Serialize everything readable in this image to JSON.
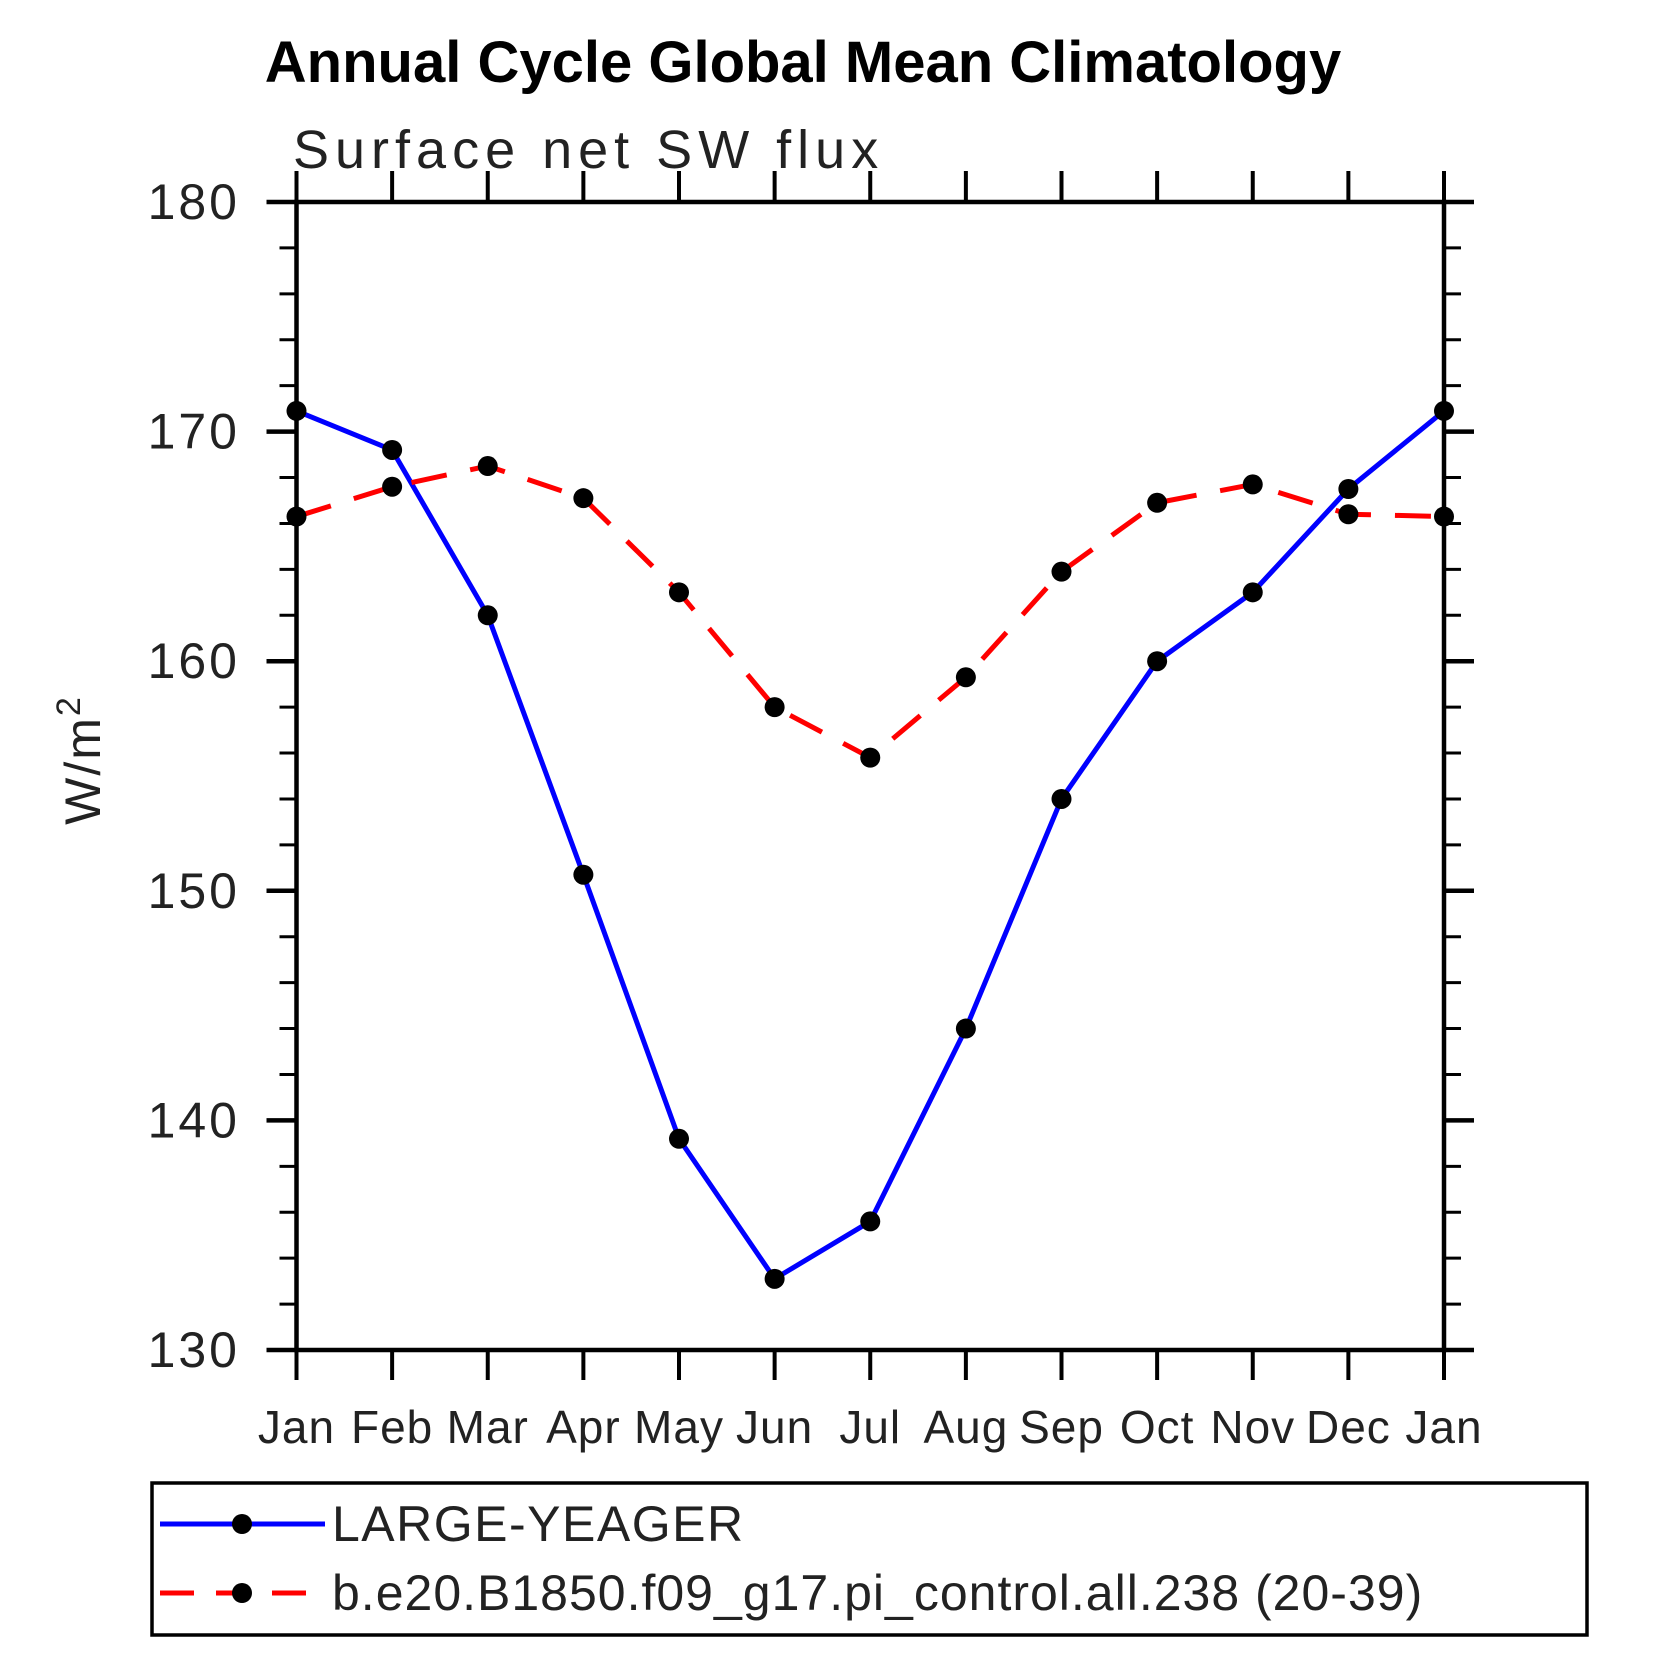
{
  "title": "Annual Cycle Global Mean Climatology",
  "subtitle": "Surface net SW flux",
  "ylabel": {
    "base": "W/m",
    "exponent": "2"
  },
  "colors": {
    "series1": "#0000ff",
    "series2": "#ff0000",
    "axis": "#000000",
    "text": "#222222"
  },
  "chart_data": {
    "type": "line",
    "title": "Annual Cycle Global Mean Climatology",
    "subtitle": "Surface net SW flux",
    "ylabel": "W/m^2",
    "x_categories": [
      "Jan",
      "Feb",
      "Mar",
      "Apr",
      "May",
      "Jun",
      "Jul",
      "Aug",
      "Sep",
      "Oct",
      "Nov",
      "Dec",
      "Jan"
    ],
    "ylim": [
      130,
      180
    ],
    "ytick_major_labels": [
      "130",
      "140",
      "150",
      "160",
      "170",
      "180"
    ],
    "ytick_major_step": 10,
    "ytick_minor_step": 2,
    "grid": false,
    "legend_position": "bottom-left-box",
    "series": [
      {
        "name": "LARGE-YEAGER",
        "color": "#0000ff",
        "line_style": "solid",
        "marker": "filled-circle",
        "marker_color": "#000000",
        "values": [
          170.9,
          169.2,
          162.0,
          150.7,
          139.2,
          133.1,
          135.6,
          144.0,
          154.0,
          160.0,
          163.0,
          167.5,
          170.9
        ]
      },
      {
        "name": "b.e20.B1850.f09_g17.pi_control.all.238 (20-39)",
        "color": "#ff0000",
        "line_style": "dashed",
        "marker": "filled-circle",
        "marker_color": "#000000",
        "values": [
          166.3,
          167.6,
          168.5,
          167.1,
          163.0,
          158.0,
          155.8,
          159.3,
          163.9,
          166.9,
          167.7,
          166.4,
          166.3
        ]
      }
    ]
  }
}
